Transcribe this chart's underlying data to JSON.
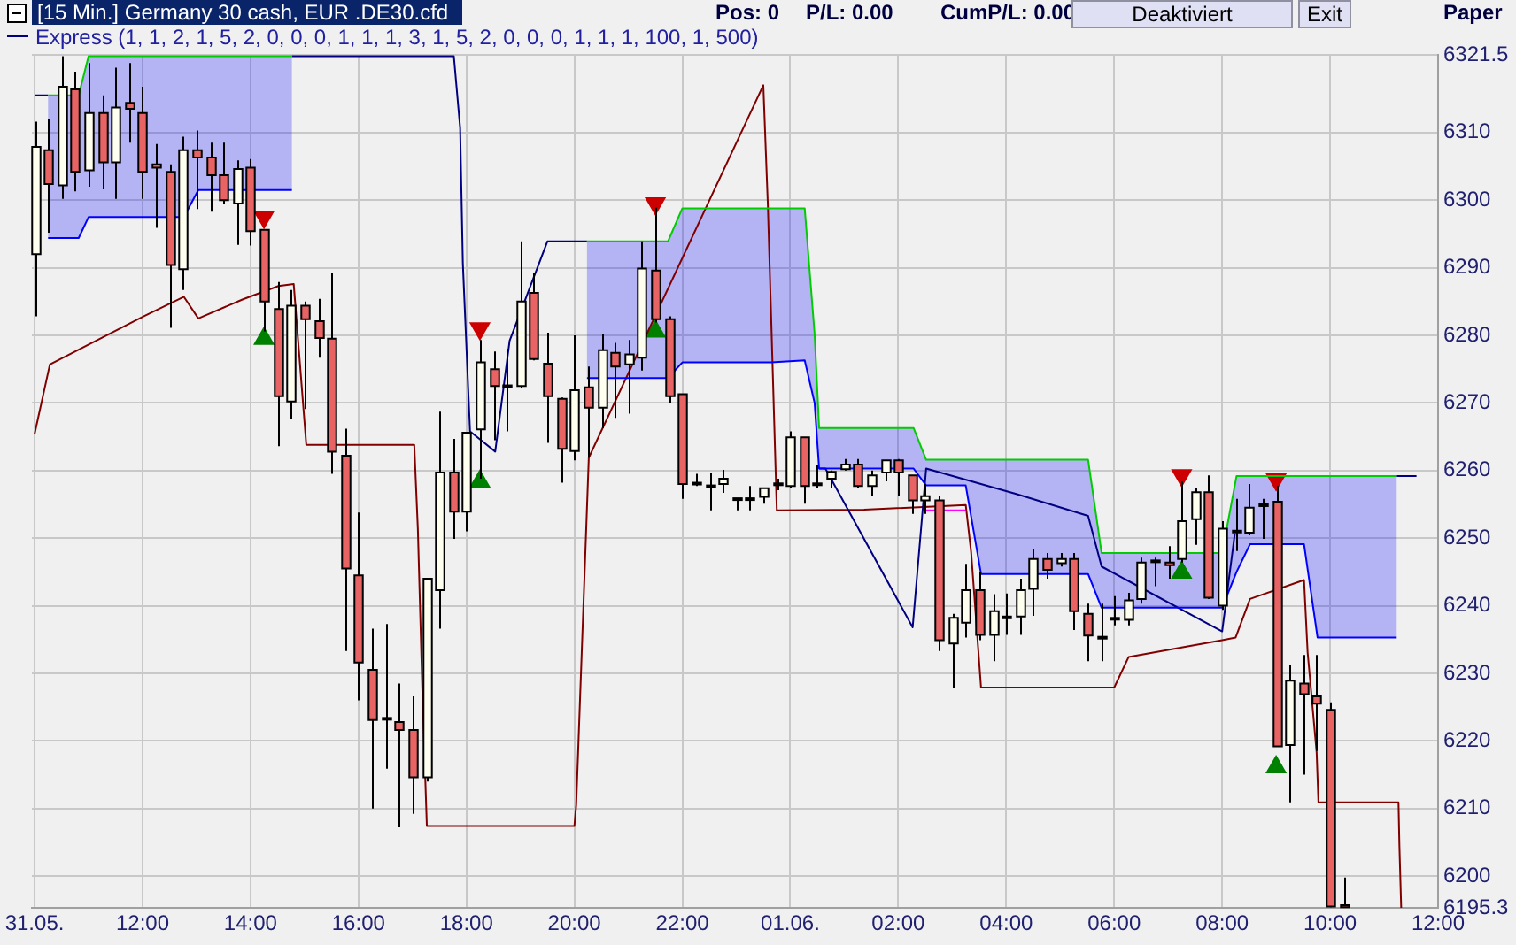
{
  "chart_data": {
    "type": "candlestick",
    "title": "[15 Min.] Germany 30 cash, EUR  .DE30.cfd",
    "subtitle": "Express  (1, 1, 2, 1, 5, 2, 0, 0, 0, 1, 1, 1, 3, 1, 5, 2, 0, 0, 0, 1, 1, 1, 100, 1, 500)",
    "annotations": [
      "Pos: 0",
      "P/L: 0.00",
      "CumP/L: 0.00",
      "Deaktiviert",
      "Exit",
      "Paper"
    ],
    "x": [
      "--05-31T10:00",
      "--05-31T10:15",
      "--05-31T10:30",
      "--05-31T10:45",
      "--05-31T11:00",
      "--05-31T11:15",
      "--05-31T11:30",
      "--05-31T11:45",
      "--05-31T12:00",
      "--05-31T12:15",
      "--05-31T12:30",
      "--05-31T12:45",
      "--05-31T13:00",
      "--05-31T13:15",
      "--05-31T13:30",
      "--05-31T13:45",
      "--05-31T14:00",
      "--05-31T14:15",
      "--05-31T14:30",
      "--05-31T14:45",
      "--05-31T15:00",
      "--05-31T15:15",
      "--05-31T15:30",
      "--05-31T15:45",
      "--05-31T16:00",
      "--05-31T16:15",
      "--05-31T16:30",
      "--05-31T16:45",
      "--05-31T17:00",
      "--05-31T17:15",
      "--05-31T17:30",
      "--05-31T17:45",
      "--05-31T18:00",
      "--05-31T18:15",
      "--05-31T18:30",
      "--05-31T18:45",
      "--05-31T19:00",
      "--05-31T19:15",
      "--05-31T19:30",
      "--05-31T19:45",
      "--05-31T20:00",
      "--05-31T20:15",
      "--05-31T20:30",
      "--05-31T20:45",
      "--05-31T21:00",
      "--05-31T21:15",
      "--05-31T21:30",
      "--05-31T21:45",
      "--05-31T22:00",
      "--05-31T22:15",
      "--05-31T22:30",
      "--05-31T22:45",
      "--05-31T23:00",
      "--05-31T23:15",
      "--05-31T23:30",
      "--05-31T23:45",
      "--06-01T00:00",
      "--06-01T00:15",
      "--06-01T00:30",
      "--06-01T00:45",
      "--06-01T01:00",
      "--06-01T01:15",
      "--06-01T01:30",
      "--06-01T01:45",
      "--06-01T02:00",
      "--06-01T02:15",
      "--06-01T02:30",
      "--06-01T02:45",
      "--06-01T03:00",
      "--06-01T03:15",
      "--06-01T03:30",
      "--06-01T03:45",
      "--06-01T04:00",
      "--06-01T04:15",
      "--06-01T04:30",
      "--06-01T04:45",
      "--06-01T05:00",
      "--06-01T05:15",
      "--06-01T05:30",
      "--06-01T05:45",
      "--06-01T06:00",
      "--06-01T06:15",
      "--06-01T06:30",
      "--06-01T06:45",
      "--06-01T07:00",
      "--06-01T07:15",
      "--06-01T07:30",
      "--06-01T07:45",
      "--06-01T08:00",
      "--06-01T08:15",
      "--06-01T08:30",
      "--06-01T08:45",
      "--06-01T09:00",
      "--06-01T09:15",
      "--06-01T09:30",
      "--06-01T09:45",
      "--06-01T10:00",
      "--06-01T10:15"
    ],
    "ohlc": [
      [
        6292.0,
        6311.6,
        6282.8,
        6307.9
      ],
      [
        6307.4,
        6312.0,
        6295.2,
        6302.4
      ],
      [
        6302.2,
        6321.3,
        6300.2,
        6316.8
      ],
      [
        6316.4,
        6319.0,
        6301.3,
        6304.2
      ],
      [
        6304.4,
        6320.3,
        6302.0,
        6312.9
      ],
      [
        6312.9,
        6315.5,
        6301.6,
        6305.6
      ],
      [
        6305.6,
        6319.6,
        6300.2,
        6313.7
      ],
      [
        6314.4,
        6320.3,
        6308.5,
        6313.5
      ],
      [
        6312.9,
        6316.8,
        6300.2,
        6304.2
      ],
      [
        6305.3,
        6308.3,
        6295.9,
        6304.8
      ],
      [
        6304.2,
        6305.3,
        6281.1,
        6290.4
      ],
      [
        6289.8,
        6309.4,
        6286.7,
        6307.4
      ],
      [
        6307.4,
        6310.3,
        6298.7,
        6306.3
      ],
      [
        6306.3,
        6308.5,
        6298.3,
        6303.7
      ],
      [
        6303.7,
        6308.5,
        6299.5,
        6300.0
      ],
      [
        6299.5,
        6305.9,
        6293.4,
        6304.6
      ],
      [
        6304.8,
        6306.1,
        6293.3,
        6295.4
      ],
      [
        6295.6,
        6295.6,
        6280.6,
        6285.0
      ],
      [
        6283.9,
        6287.9,
        6263.6,
        6271.0
      ],
      [
        6270.2,
        6286.7,
        6267.6,
        6284.4
      ],
      [
        6284.4,
        6285.0,
        6269.1,
        6282.4
      ],
      [
        6282.1,
        6285.4,
        6276.7,
        6279.6
      ],
      [
        6279.5,
        6289.3,
        6259.5,
        6262.8
      ],
      [
        6262.2,
        6266.2,
        6233.3,
        6245.5
      ],
      [
        6244.5,
        6253.8,
        6226.0,
        6231.6
      ],
      [
        6230.5,
        6236.6,
        6210.0,
        6223.1
      ],
      [
        6223.3,
        6237.3,
        6215.9,
        6223.4
      ],
      [
        6222.8,
        6228.5,
        6207.2,
        6221.6
      ],
      [
        6221.6,
        6226.6,
        6209.2,
        6214.6
      ],
      [
        6214.6,
        6244.0,
        6214.0,
        6244.0
      ],
      [
        6242.3,
        6268.7,
        6236.6,
        6259.7
      ],
      [
        6259.7,
        6264.7,
        6249.9,
        6253.9
      ],
      [
        6253.9,
        6265.6,
        6251.0,
        6265.6
      ],
      [
        6266.1,
        6279.3,
        6258.8,
        6276.0
      ],
      [
        6275.0,
        6277.6,
        6264.5,
        6272.5
      ],
      [
        6272.5,
        6278.0,
        6265.8,
        6272.6
      ],
      [
        6272.5,
        6293.9,
        6272.2,
        6285.0
      ],
      [
        6286.3,
        6289.3,
        6276.3,
        6276.5
      ],
      [
        6275.8,
        6280.4,
        6264.1,
        6271.0
      ],
      [
        6270.6,
        6270.8,
        6258.2,
        6263.2
      ],
      [
        6262.9,
        6280.0,
        6261.5,
        6271.9
      ],
      [
        6272.3,
        6275.4,
        6261.9,
        6269.3
      ],
      [
        6269.3,
        6280.2,
        6266.3,
        6277.8
      ],
      [
        6277.4,
        6278.9,
        6267.8,
        6275.4
      ],
      [
        6275.7,
        6279.3,
        6268.4,
        6277.2
      ],
      [
        6276.7,
        6293.9,
        6274.8,
        6289.9
      ],
      [
        6289.6,
        6298.9,
        6281.9,
        6282.4
      ],
      [
        6282.4,
        6282.8,
        6270.0,
        6271.0
      ],
      [
        6271.3,
        6271.3,
        6255.8,
        6258.0
      ],
      [
        6258.1,
        6259.5,
        6257.7,
        6258.2
      ],
      [
        6257.7,
        6259.7,
        6254.1,
        6257.8
      ],
      [
        6258.0,
        6260.1,
        6256.7,
        6258.8
      ],
      [
        6255.8,
        6255.9,
        6254.1,
        6255.9
      ],
      [
        6255.8,
        6257.7,
        6254.1,
        6255.9
      ],
      [
        6256.1,
        6257.4,
        6255.1,
        6257.4
      ],
      [
        6258.0,
        6258.8,
        6257.1,
        6258.1
      ],
      [
        6257.7,
        6265.8,
        6257.4,
        6264.9
      ],
      [
        6264.9,
        6264.9,
        6255.1,
        6257.7
      ],
      [
        6258.0,
        6260.9,
        6257.4,
        6258.1
      ],
      [
        6258.8,
        6260.0,
        6257.4,
        6259.8
      ],
      [
        6260.2,
        6261.7,
        6260.0,
        6260.9
      ],
      [
        6260.9,
        6261.7,
        6257.4,
        6257.7
      ],
      [
        6257.7,
        6260.0,
        6256.2,
        6259.3
      ],
      [
        6259.7,
        6261.5,
        6258.4,
        6261.5
      ],
      [
        6261.5,
        6261.7,
        6256.2,
        6259.7
      ],
      [
        6259.3,
        6259.3,
        6253.6,
        6255.6
      ],
      [
        6255.6,
        6258.0,
        6253.6,
        6256.2
      ],
      [
        6255.6,
        6256.2,
        6233.3,
        6234.9
      ],
      [
        6234.4,
        6238.8,
        6227.9,
        6238.2
      ],
      [
        6237.5,
        6246.2,
        6235.3,
        6242.3
      ],
      [
        6242.3,
        6244.9,
        6234.9,
        6235.7
      ],
      [
        6235.7,
        6241.7,
        6231.8,
        6239.2
      ],
      [
        6238.3,
        6241.8,
        6235.7,
        6238.4
      ],
      [
        6238.4,
        6244.0,
        6235.7,
        6242.3
      ],
      [
        6242.5,
        6248.4,
        6238.5,
        6246.9
      ],
      [
        6246.9,
        6247.8,
        6244.0,
        6245.3
      ],
      [
        6246.3,
        6247.8,
        6245.8,
        6246.9
      ],
      [
        6246.9,
        6247.8,
        6236.4,
        6239.2
      ],
      [
        6238.8,
        6240.3,
        6231.8,
        6235.6
      ],
      [
        6235.3,
        6240.3,
        6231.8,
        6235.4
      ],
      [
        6238.1,
        6241.4,
        6237.1,
        6238.2
      ],
      [
        6237.9,
        6241.9,
        6237.1,
        6240.8
      ],
      [
        6241.0,
        6247.1,
        6240.3,
        6246.4
      ],
      [
        6246.6,
        6247.1,
        6242.9,
        6246.7
      ],
      [
        6246.4,
        6248.8,
        6244.0,
        6246.0
      ],
      [
        6246.9,
        6258.4,
        6246.4,
        6252.5
      ],
      [
        6252.8,
        6257.5,
        6249.0,
        6256.8
      ],
      [
        6256.8,
        6259.3,
        6241.0,
        6241.2
      ],
      [
        6240.0,
        6252.5,
        6239.4,
        6251.4
      ],
      [
        6251.0,
        6255.8,
        6248.1,
        6251.1
      ],
      [
        6250.8,
        6258.0,
        6250.4,
        6254.5
      ],
      [
        6254.9,
        6255.8,
        6249.9,
        6255.0
      ],
      [
        6255.4,
        6257.7,
        6219.2,
        6219.2
      ],
      [
        6219.4,
        6231.2,
        6210.9,
        6228.9
      ],
      [
        6228.5,
        6232.7,
        6215.0,
        6226.9
      ],
      [
        6226.6,
        6232.7,
        6218.5,
        6225.5
      ],
      [
        6224.6,
        6225.7,
        6195.4,
        6195.5
      ],
      [
        6195.7,
        6199.8,
        6195.3,
        6195.4
      ]
    ],
    "colors": [
      "#fffff0",
      "#e86464",
      "#fffff0",
      "#e86464",
      "#fffff0",
      "#e86464",
      "#fffff0",
      "#e86464",
      "#e86464",
      "#e86464",
      "#e86464",
      "#fffff0",
      "#e86464",
      "#e86464",
      "#e86464",
      "#fffff0",
      "#e86464",
      "#e86464",
      "#e86464",
      "#fffff0",
      "#e86464",
      "#e86464",
      "#e86464",
      "#e86464",
      "#e86464",
      "#e86464",
      "#fffff0",
      "#e86464",
      "#e86464",
      "#fffff0",
      "#fffff0",
      "#e86464",
      "#fffff0",
      "#fffff0",
      "#e86464",
      "#fffff0",
      "#fffff0",
      "#e86464",
      "#e86464",
      "#e86464",
      "#fffff0",
      "#e86464",
      "#fffff0",
      "#e86464",
      "#fffff0",
      "#fffff0",
      "#e86464",
      "#e86464",
      "#e86464",
      "#fffff0",
      "#fffff0",
      "#fffff0",
      "#fffff0",
      "#fffff0",
      "#fffff0",
      "#fffff0",
      "#fffff0",
      "#e86464",
      "#fffff0",
      "#fffff0",
      "#fffff0",
      "#e86464",
      "#fffff0",
      "#fffff0",
      "#e86464",
      "#e86464",
      "#fffff0",
      "#e86464",
      "#fffff0",
      "#fffff0",
      "#e86464",
      "#fffff0",
      "#fffff0",
      "#fffff0",
      "#fffff0",
      "#e86464",
      "#fffff0",
      "#e86464",
      "#e86464",
      "#fffff0",
      "#fffff0",
      "#fffff0",
      "#fffff0",
      "#fffff0",
      "#e86464",
      "#fffff0",
      "#fffff0",
      "#e86464",
      "#fffff0",
      "#fffff0",
      "#fffff0",
      "#fffff0",
      "#e86464",
      "#fffff0",
      "#e86464",
      "#e86464",
      "#e86464",
      "#e86464"
    ],
    "series": [
      {
        "type": "line",
        "color": "#0000ff",
        "x": [
          "--05-31T10:15",
          "--05-31T10:49",
          "--05-31T11:00",
          "--05-31T12:46",
          "--05-31T13:02",
          "--05-31T14:46",
          "--05-31T17:00",
          "--05-31T20:14",
          "--05-31T21:44",
          "--05-31T22:00",
          "--05-31T23:39",
          "--06-01T00:16",
          "--06-01T00:27",
          "--06-01T00:32",
          "--06-01T02:17",
          "--06-01T02:31",
          "--06-01T03:15",
          "--06-01T03:32",
          "--06-01T05:31",
          "--06-01T05:46",
          "--06-01T08:00",
          "--06-01T08:16",
          "--06-01T08:31",
          "--06-01T09:31",
          "--06-01T09:46",
          "--06-01T11:14"
        ],
        "values": [
          6294.4,
          6294.4,
          6297.5,
          6297.5,
          6301.5,
          6301.5,
          null,
          6273.7,
          6273.7,
          6276.0,
          6276.0,
          6276.3,
          6270.0,
          6260.3,
          6260.3,
          6257.8,
          6257.8,
          6244.7,
          6244.7,
          6239.7,
          6239.7,
          6245.0,
          6249.1,
          6249.1,
          6235.3,
          6235.3
        ],
        "lower": [
          6294.4,
          6294.4,
          6297.5,
          6297.5,
          6301.5,
          6301.5,
          null,
          6273.7,
          6273.7,
          6276.0,
          6276.0,
          6276.3,
          6270.0,
          6260.3,
          6260.3,
          6257.8,
          6257.8,
          6244.7,
          6244.7,
          6239.7,
          6239.7,
          6245.0,
          6249.1,
          6249.1,
          6235.3,
          6235.3
        ],
        "upper": [
          6315.5,
          6315.5,
          6321.3,
          6321.3,
          6321.3,
          6321.3,
          null,
          6293.9,
          6293.9,
          6298.8,
          6298.8,
          6298.8,
          6280.2,
          6266.3,
          6266.3,
          6261.6,
          6261.6,
          6261.6,
          6261.6,
          6247.8,
          6247.8,
          6259.2,
          6259.2,
          6259.2,
          6259.2,
          6259.2
        ]
      },
      {
        "type": "line",
        "color": "#00cc00",
        "x": [
          "--05-31T10:15",
          "--05-31T10:49",
          "--05-31T11:00",
          "--05-31T12:46",
          "--05-31T13:02",
          "--05-31T14:46",
          "--05-31T17:00",
          "--05-31T20:14",
          "--05-31T21:44",
          "--05-31T22:00",
          "--05-31T23:39",
          "--06-01T00:16",
          "--06-01T00:27",
          "--06-01T00:32",
          "--06-01T02:17",
          "--06-01T02:31",
          "--06-01T03:15",
          "--06-01T03:32",
          "--06-01T05:31",
          "--06-01T05:46",
          "--06-01T08:00",
          "--06-01T08:16",
          "--06-01T08:31",
          "--06-01T09:31",
          "--06-01T09:46",
          "--06-01T11:14"
        ],
        "values": [
          6315.5,
          6315.5,
          6321.3,
          6321.3,
          6321.3,
          6321.3,
          null,
          6293.9,
          6293.9,
          6298.8,
          6298.8,
          6298.8,
          6280.2,
          6266.3,
          6266.3,
          6261.6,
          6261.6,
          6261.6,
          6261.6,
          6247.8,
          6247.8,
          6259.2,
          6259.2,
          6259.2,
          6259.2,
          6259.2
        ]
      },
      {
        "type": "line",
        "color": "#000080",
        "x": [
          "--05-31T10:00",
          "--05-31T10:15",
          "--05-31T10:30",
          "--05-31T14:46",
          "--05-31T17:46",
          "--05-31T17:53",
          "--05-31T17:56",
          "--05-31T18:04",
          "--05-31T18:32",
          "--05-31T18:48",
          "--05-31T19:30",
          "--05-31T20:14",
          "--05-31T20:20",
          "--06-01T00:32",
          "--06-01T00:39",
          "--06-01T02:16",
          "--06-01T02:31",
          "--06-01T04:12",
          "--06-01T05:31",
          "--06-01T05:46",
          "--06-01T08:00",
          "--06-01T08:14",
          "--06-01T08:20",
          "--06-01T11:14",
          "--06-01T11:36"
        ],
        "values": [
          6315.5,
          6315.5,
          null,
          6321.3,
          6321.3,
          6310.7,
          6290.7,
          6265.8,
          6262.8,
          6279.2,
          6293.9,
          6293.9,
          null,
          6260.3,
          6260.3,
          6236.8,
          6260.3,
          6256.5,
          6253.3,
          6245.8,
          6236.2,
          6250.6,
          null,
          6259.2,
          6259.2
        ]
      },
      {
        "type": "line",
        "color": "#800000",
        "x": [
          "--05-31T10:00",
          "--05-31T10:17",
          "--05-31T12:01",
          "--05-31T12:46",
          "--05-31T13:02",
          "--05-31T13:51",
          "--05-31T14:31",
          "--05-31T14:48",
          "--05-31T15:02",
          "--05-31T17:02",
          "--05-31T17:06",
          "--05-31T17:11",
          "--05-31T17:16",
          "--05-31T20:00",
          "--05-31T20:02",
          "--05-31T20:16",
          "--05-31T23:30",
          "--05-31T23:35",
          "--05-31T23:45",
          "--06-01T01:22",
          "--06-01T03:15",
          "--06-01T03:21",
          "--06-01T03:32",
          "--06-01T06:00",
          "--06-01T06:16",
          "--06-01T08:00",
          "--06-01T08:15",
          "--06-01T08:31",
          "--06-01T09:31",
          "--06-01T09:35",
          "--06-01T09:45",
          "--06-01T09:47",
          "--06-01T11:16",
          "--06-01T11:17",
          "--06-01T11:19"
        ],
        "values": [
          6265.4,
          6275.7,
          6282.8,
          6285.7,
          6282.5,
          6285.3,
          6287.3,
          6287.6,
          6263.8,
          6263.8,
          6251.4,
          6227.5,
          6207.4,
          6207.4,
          6210.5,
          6261.9,
          6317.0,
          6299.4,
          6254.1,
          6254.2,
          6254.9,
          6247.9,
          6227.9,
          6227.9,
          6232.4,
          6234.9,
          6235.3,
          6241.0,
          6243.8,
          6233.1,
          6218.3,
          6210.9,
          6210.9,
          6204.6,
          6195.3
        ]
      },
      {
        "type": "line",
        "color": "#ff00ff",
        "x": [
          "--06-01T02:31",
          "--06-01T03:15"
        ],
        "values": [
          6254.1,
          6254.1
        ]
      },
      {
        "type": "scatter",
        "marker": "triangle",
        "color": "#cc0000",
        "x": [
          "--05-31T14:15",
          "--05-31T18:15",
          "--05-31T21:30",
          "--06-01T07:15",
          "--06-01T09:00"
        ],
        "values": [
          6297.5,
          6281.0,
          6299.5,
          6259.3,
          6258.7
        ]
      },
      {
        "type": "scatter",
        "marker": "triangle",
        "color": "#008000",
        "x": [
          "--05-31T14:15",
          "--05-31T18:15",
          "--05-31T21:30",
          "--06-01T07:15",
          "--06-01T09:00"
        ],
        "values": [
          6279.5,
          6258.4,
          6280.6,
          6244.9,
          6216.1
        ]
      }
    ],
    "xlim": [
      "--05-31T09:57",
      "--06-01T12:00"
    ],
    "xticks": [
      {
        "value": "--05-31T10:00",
        "label": "31.05."
      },
      {
        "value": "--05-31T12:00",
        "label": "12:00"
      },
      {
        "value": "--05-31T14:00",
        "label": "14:00"
      },
      {
        "value": "--05-31T16:00",
        "label": "16:00"
      },
      {
        "value": "--05-31T18:00",
        "label": "18:00"
      },
      {
        "value": "--05-31T20:00",
        "label": "20:00"
      },
      {
        "value": "--05-31T22:00",
        "label": "22:00"
      },
      {
        "value": "--06-01T00:00",
        "label": "01.06."
      },
      {
        "value": "--06-01T02:00",
        "label": "02:00"
      },
      {
        "value": "--06-01T04:00",
        "label": "04:00"
      },
      {
        "value": "--06-01T06:00",
        "label": "06:00"
      },
      {
        "value": "--06-01T08:00",
        "label": "08:00"
      },
      {
        "value": "--06-01T10:00",
        "label": "10:00"
      },
      {
        "value": "--06-01T12:00",
        "label": "12:00"
      }
    ],
    "ylim": [
      6195.3,
      6321.5
    ],
    "yticks": [
      6195.3,
      6200,
      6210,
      6220,
      6230,
      6240,
      6250,
      6260,
      6270,
      6280,
      6290,
      6300,
      6310,
      6321.5
    ],
    "grid": true
  }
}
